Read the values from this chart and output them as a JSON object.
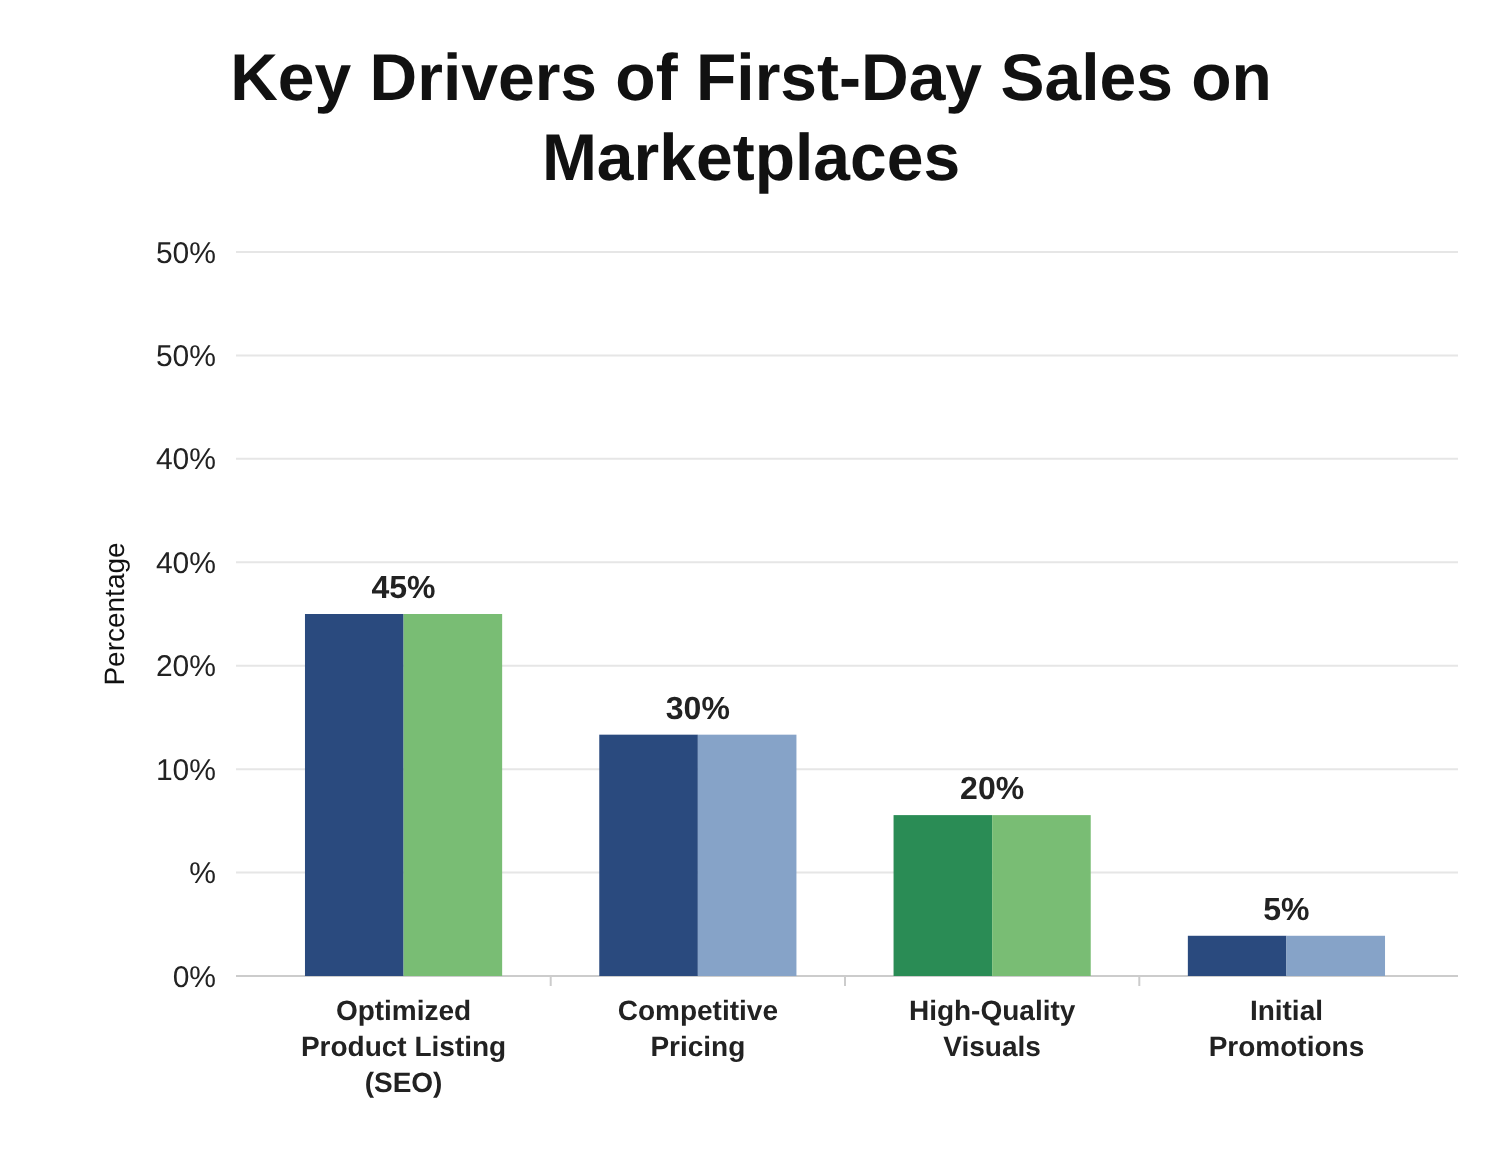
{
  "chart_data": {
    "type": "bar",
    "title": "Key Drivers of First-Day Sales on Marketplaces",
    "ylabel": "Percentage",
    "categories": [
      "Optimized Product Listing (SEO)",
      "Competitive Pricing",
      "High-Quality Visuals",
      "Initial Promotions"
    ],
    "series": [
      {
        "colors": [
          "#2a4a7e",
          "#2a4a7e",
          "#2a8c55",
          "#2a4a7e"
        ],
        "values": [
          45,
          30,
          20,
          5
        ],
        "value_labels": [
          "45%",
          "30%",
          "20%",
          "5%"
        ]
      },
      {
        "colors": [
          "#79bd74",
          "#86a3c8",
          "#79bd74",
          "#86a3c8"
        ],
        "values": [
          45,
          30,
          20,
          5
        ]
      }
    ],
    "annotations": [
      "0%",
      "%",
      "10%",
      "20%",
      "40%",
      "40%",
      "50%",
      "50%"
    ],
    "grid": true
  }
}
